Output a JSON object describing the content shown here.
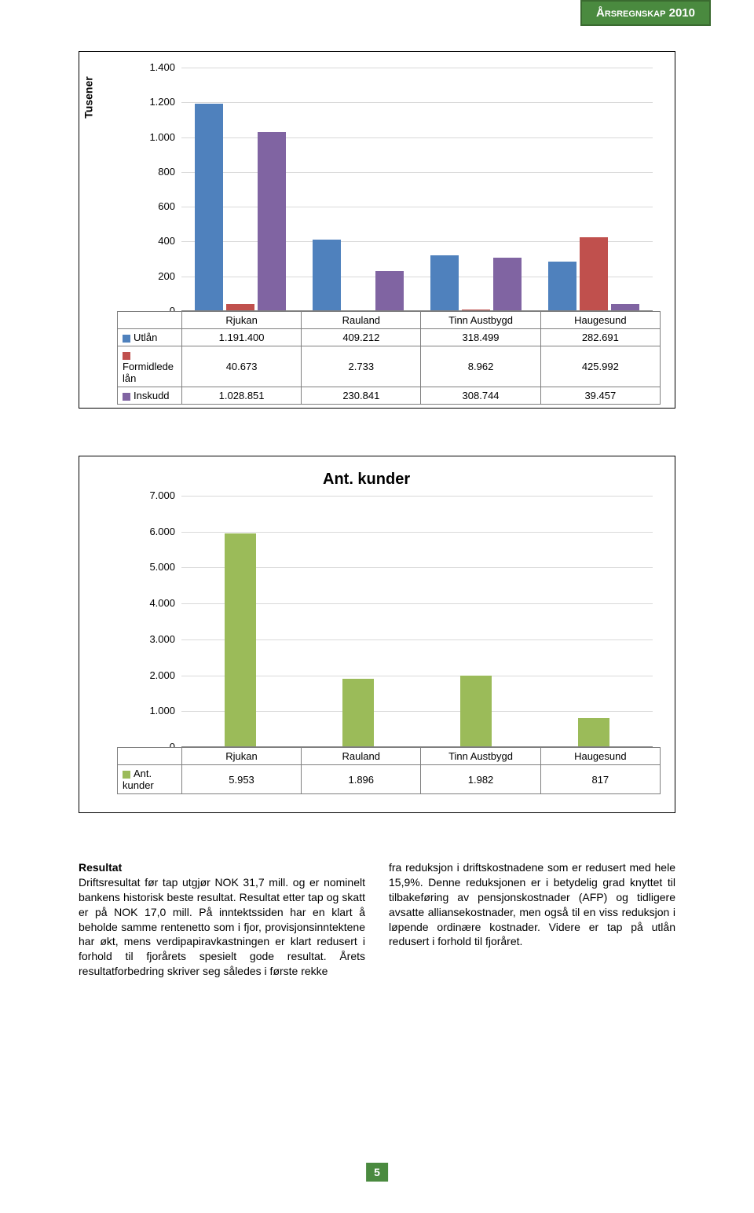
{
  "header": {
    "title": "Årsregnskap 2010"
  },
  "chart1": {
    "type": "bar",
    "y_label": "Tusener",
    "ylim": [
      0,
      1400
    ],
    "ytick_step": 200,
    "categories": [
      "Rjukan",
      "Rauland",
      "Tinn Austbygd",
      "Haugesund"
    ],
    "series": [
      {
        "name": "Utlån",
        "color": "#4f81bd",
        "values": [
          "1.191.400",
          "409.212",
          "318.499",
          "282.691"
        ],
        "num": [
          1191.4,
          409.212,
          318.499,
          282.691
        ]
      },
      {
        "name": "Formidlede lån",
        "color": "#c0504d",
        "values": [
          "40.673",
          "2.733",
          "8.962",
          "425.992"
        ],
        "num": [
          40.673,
          2.733,
          8.962,
          425.992
        ]
      },
      {
        "name": "Inskudd",
        "color": "#8064a2",
        "values": [
          "1.028.851",
          "230.841",
          "308.744",
          "39.457"
        ],
        "num": [
          1028.851,
          230.841,
          308.744,
          39.457
        ]
      }
    ],
    "grid_color": "#d9d9d9",
    "axis_color": "#808080",
    "label_fontsize": 13
  },
  "chart2": {
    "type": "bar",
    "title": "Ant. kunder",
    "ylim": [
      0,
      7000
    ],
    "ytick_step": 1000,
    "categories": [
      "Rjukan",
      "Rauland",
      "Tinn Austbygd",
      "Haugesund"
    ],
    "series": [
      {
        "name": "Ant. kunder",
        "color": "#9bbb59",
        "values": [
          "5.953",
          "1.896",
          "1.982",
          "817"
        ],
        "num": [
          5953,
          1896,
          1982,
          817
        ]
      }
    ],
    "grid_color": "#d9d9d9",
    "axis_color": "#808080",
    "label_fontsize": 13,
    "ytick_labels": [
      "0",
      "1.000",
      "2.000",
      "3.000",
      "4.000",
      "5.000",
      "6.000",
      "7.000"
    ]
  },
  "body": {
    "heading": "Resultat",
    "left": "Driftsresultat før tap utgjør NOK 31,7 mill. og er nominelt bankens historisk beste resultat. Resultat etter tap og skatt er på NOK 17,0 mill. På inntektssiden har en klart å beholde samme rentenetto som i fjor, provisjonsinntektene har økt, mens verdipapiravkastningen er klart redusert i forhold til fjorårets spesielt gode resultat. Årets resultatforbedring skriver seg således i første rekke",
    "right": "fra reduksjon i driftskostnadene som er redusert med hele 15,9%. Denne reduksjonen er i betydelig grad knyttet til tilbakeføring av pensjonskostnader (AFP) og tidligere avsatte alliansekostnader, men også til en viss reduksjon i løpende ordinære kostnader. Videre er tap på utlån redusert i forhold til fjoråret."
  },
  "footer": {
    "page": "5"
  }
}
